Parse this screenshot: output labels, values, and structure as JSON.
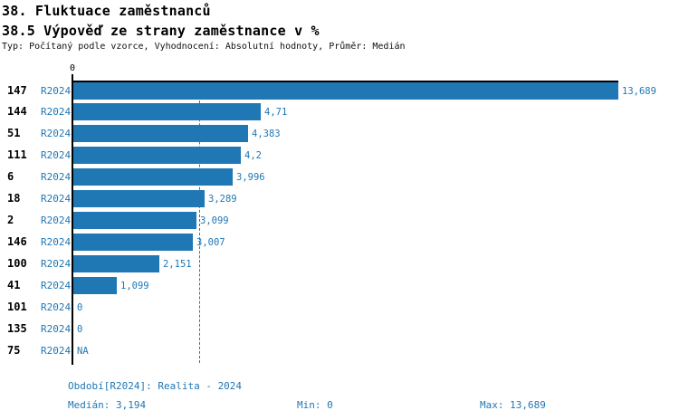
{
  "header": {
    "title": "38. Fluktuace zaměstnanců",
    "subtitle": "38.5 Výpověď ze strany zaměstnance v %",
    "meta": "Typ: Počítaný podle vzorce, Vyhodnocení: Absolutní hodnoty, Průměr: Medián"
  },
  "colors": {
    "accent_blue": "#1f77b4",
    "axis_black": "#000000"
  },
  "chart_data": {
    "type": "bar",
    "orientation": "horizontal",
    "title": "38.5 Výpověď ze strany zaměstnance v %",
    "unit": "%",
    "period": "R2024",
    "x_axis": {
      "tick_label": "0",
      "range": [
        0,
        13.689
      ],
      "gridlines": false
    },
    "median": 3.194,
    "min": 0,
    "max": 13.689,
    "legend_position": "bottom",
    "categories": [
      "147",
      "144",
      "51",
      "111",
      "6",
      "18",
      "2",
      "146",
      "100",
      "41",
      "101",
      "135",
      "75"
    ],
    "rows": [
      {
        "id": "147",
        "period": "R2024",
        "value": 13.689,
        "value_label": "13,689"
      },
      {
        "id": "144",
        "period": "R2024",
        "value": 4.71,
        "value_label": "4,71"
      },
      {
        "id": "51",
        "period": "R2024",
        "value": 4.383,
        "value_label": "4,383"
      },
      {
        "id": "111",
        "period": "R2024",
        "value": 4.2,
        "value_label": "4,2"
      },
      {
        "id": "6",
        "period": "R2024",
        "value": 3.996,
        "value_label": "3,996"
      },
      {
        "id": "18",
        "period": "R2024",
        "value": 3.289,
        "value_label": "3,289"
      },
      {
        "id": "2",
        "period": "R2024",
        "value": 3.099,
        "value_label": "3,099"
      },
      {
        "id": "146",
        "period": "R2024",
        "value": 3.007,
        "value_label": "3,007"
      },
      {
        "id": "100",
        "period": "R2024",
        "value": 2.151,
        "value_label": "2,151"
      },
      {
        "id": "41",
        "period": "R2024",
        "value": 1.099,
        "value_label": "1,099"
      },
      {
        "id": "101",
        "period": "R2024",
        "value": 0,
        "value_label": "0"
      },
      {
        "id": "135",
        "period": "R2024",
        "value": 0,
        "value_label": "0"
      },
      {
        "id": "75",
        "period": "R2024",
        "value": null,
        "value_label": "NA"
      }
    ]
  },
  "footer": {
    "period_line": "Období[R2024]: Realita - 2024",
    "median": "Medián: 3,194",
    "min": "Min: 0",
    "max": "Max: 13,689"
  }
}
